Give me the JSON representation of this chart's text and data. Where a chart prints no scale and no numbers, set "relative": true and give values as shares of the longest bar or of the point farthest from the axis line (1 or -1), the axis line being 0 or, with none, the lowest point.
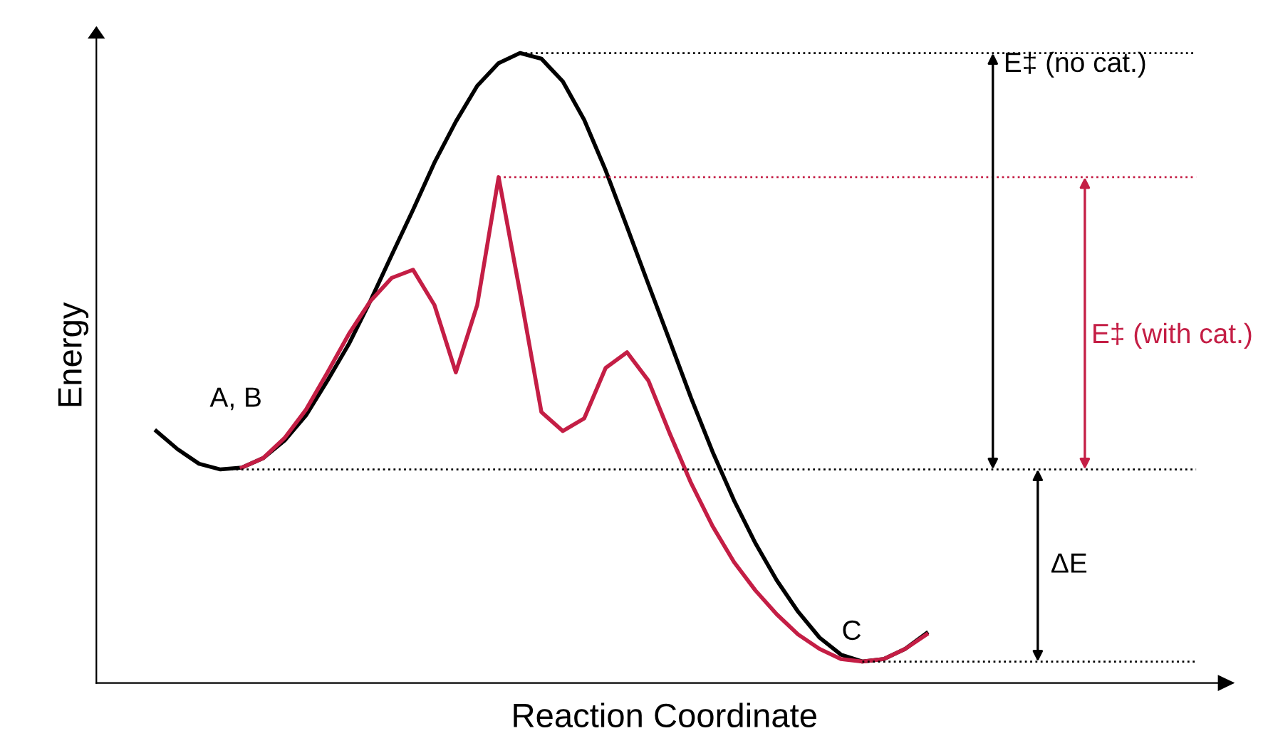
{
  "chart_data": {
    "type": "line",
    "relative": true,
    "xlabel": "Reaction Coordinate",
    "ylabel": "Energy",
    "categories": [
      null,
      null,
      null,
      null,
      null,
      null,
      null,
      null,
      null,
      null,
      null,
      null,
      null,
      null,
      null,
      null,
      null,
      null,
      null,
      null,
      null,
      null,
      null,
      null,
      null,
      null,
      null,
      null,
      null,
      null,
      null,
      null,
      null,
      null,
      null,
      null,
      null
    ],
    "series": [
      {
        "color": "#000000",
        "values": [
          0.4,
          0.371,
          0.348,
          0.339,
          0.342,
          0.357,
          0.385,
          0.425,
          0.48,
          0.538,
          0.606,
          0.679,
          0.751,
          0.826,
          0.891,
          0.948,
          0.984,
          1,
          0.991,
          0.955,
          0.894,
          0.814,
          0.724,
          0.633,
          0.543,
          0.452,
          0.367,
          0.29,
          0.222,
          0.163,
          0.113,
          0.072,
          0.045,
          0.034,
          0.038,
          0.054,
          0.079
        ]
      },
      {
        "color": "#c41e45",
        "values": [
          null,
          null,
          null,
          null,
          0.342,
          0.357,
          0.389,
          0.434,
          0.493,
          0.554,
          0.606,
          0.643,
          0.656,
          0.6,
          0.493,
          0.6,
          0.803,
          0.62,
          0.43,
          0.4,
          0.42,
          0.5,
          0.525,
          0.48,
          0.396,
          0.317,
          0.249,
          0.192,
          0.147,
          0.109,
          0.077,
          0.054,
          0.038,
          0.034,
          0.038,
          0.054,
          0.077
        ]
      }
    ],
    "ref_lines": [
      {
        "axis": "y",
        "value": 1,
        "color": "#000000",
        "line_style": "dotted"
      },
      {
        "axis": "y",
        "value": 0.803,
        "color": "#c41e45",
        "line_style": "dotted"
      },
      {
        "axis": "y",
        "value": 0.339,
        "color": "#000000",
        "line_style": "dotted"
      },
      {
        "axis": "y",
        "value": 0.034,
        "color": "#000000",
        "line_style": "dotted"
      }
    ],
    "annotations": [
      "A, B",
      "C",
      "E‡ (no cat.)",
      "E‡ (with cat.)",
      "ΔE"
    ],
    "line_style": "solid",
    "marker": "none"
  }
}
